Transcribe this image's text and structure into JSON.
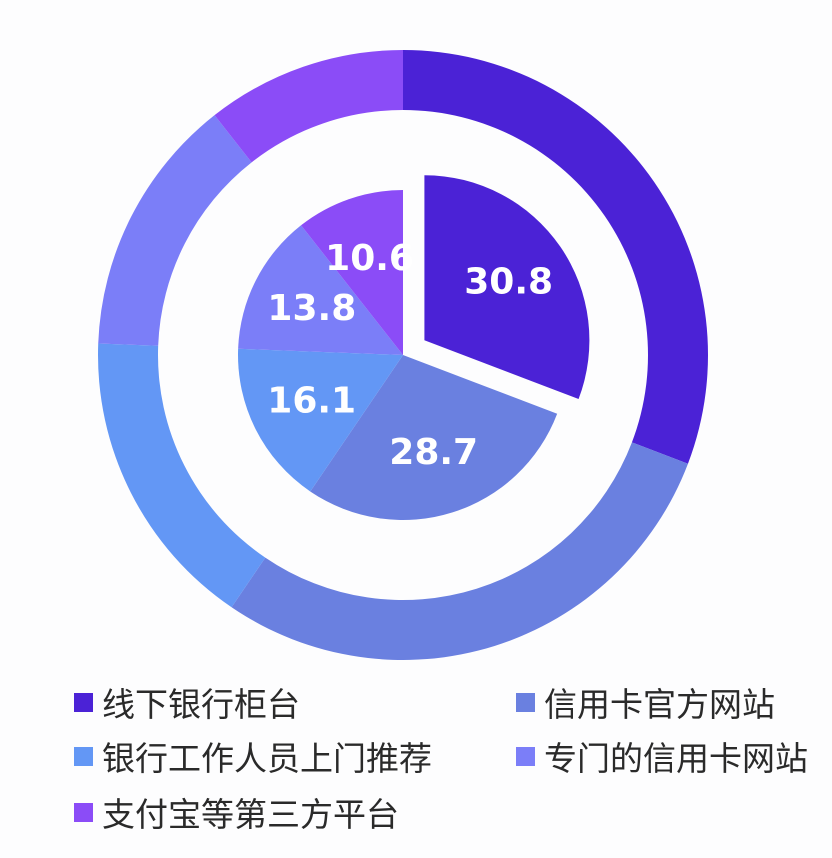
{
  "chart_data": {
    "type": "pie",
    "subtype": "pie with outer donut ring",
    "title": "",
    "categories": [
      "线下银行柜台",
      "信用卡官方网站",
      "银行工作人员上门推荐",
      "专门的信用卡网站",
      "支付宝等第三方平台"
    ],
    "values": [
      30.8,
      28.7,
      16.1,
      13.8,
      10.6
    ],
    "colors": [
      "#4b22d6",
      "#6a80e0",
      "#6397f5",
      "#7b7ef8",
      "#8b4cf7"
    ],
    "data_labels": [
      "30.8",
      "28.7",
      "16.1",
      "13.8",
      "10.6"
    ],
    "exploded_slice": "线下银行柜台",
    "legend_position": "bottom"
  },
  "legend": {
    "items": [
      {
        "label": "线下银行柜台",
        "color": "#4b22d6"
      },
      {
        "label": "信用卡官方网站",
        "color": "#6a80e0"
      },
      {
        "label": "银行工作人员上门推荐",
        "color": "#6397f5"
      },
      {
        "label": "专门的信用卡网站",
        "color": "#7b7ef8"
      },
      {
        "label": "支付宝等第三方平台",
        "color": "#8b4cf7"
      }
    ]
  }
}
